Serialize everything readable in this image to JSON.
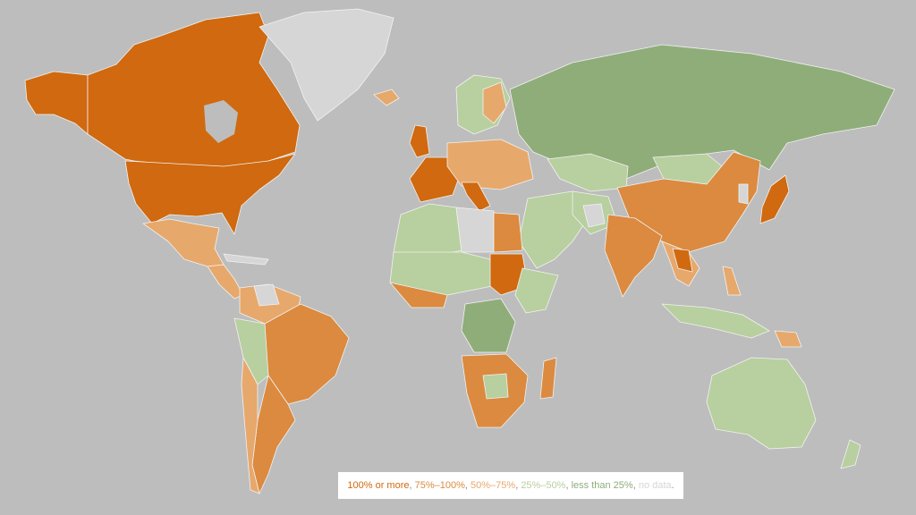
{
  "legend": {
    "items": [
      {
        "label": "100% or more",
        "color": "#d0690f"
      },
      {
        "label": "75%–100%",
        "color": "#db8a3f"
      },
      {
        "label": "50%–75%",
        "color": "#e7a86c"
      },
      {
        "label": "25%–50%",
        "color": "#b8cf9f"
      },
      {
        "label": "less than 25%",
        "color": "#8fad79"
      },
      {
        "label": "no data",
        "color": "#d6d6d6"
      }
    ]
  },
  "colors": {
    "ocean": "#bdbdbd",
    "border": "#f2f2f2"
  }
}
